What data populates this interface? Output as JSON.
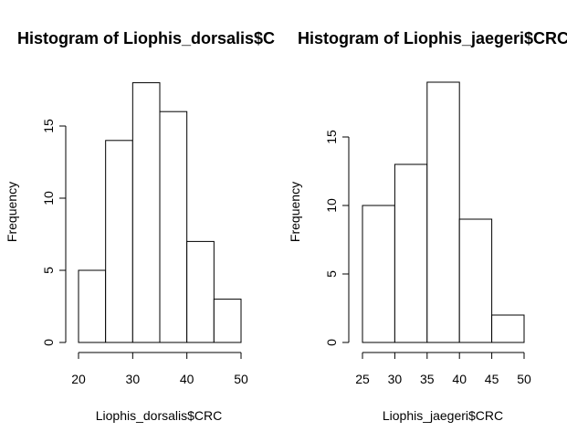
{
  "chart_data": [
    {
      "type": "bar",
      "title": "Histogram of Liophis_dorsalis$C",
      "xlabel": "Liophis_dorsalis$CRC",
      "ylabel": "Frequency",
      "bin_edges": [
        20,
        25,
        30,
        35,
        40,
        45,
        50
      ],
      "values": [
        5,
        14,
        18,
        16,
        7,
        3
      ],
      "xticks": [
        20,
        30,
        40,
        50
      ],
      "xtick_labels": [
        "20",
        "30",
        "40",
        "50"
      ],
      "yticks": [
        0,
        5,
        10,
        15
      ],
      "ytick_labels": [
        "0",
        "5",
        "10",
        "15"
      ],
      "xlim": [
        20,
        50
      ],
      "ylim": [
        0,
        18
      ],
      "grid": false
    },
    {
      "type": "bar",
      "title": "Histogram of Liophis_jaegeri$CRC",
      "xlabel": "Liophis_jaegeri$CRC",
      "ylabel": "Frequency",
      "bin_edges": [
        25,
        30,
        35,
        40,
        45,
        50
      ],
      "values": [
        10,
        13,
        19,
        9,
        2
      ],
      "xticks": [
        25,
        30,
        35,
        40,
        45,
        50
      ],
      "xtick_labels": [
        "25",
        "30",
        "35",
        "40",
        "45",
        "50"
      ],
      "yticks": [
        0,
        5,
        10,
        15
      ],
      "ytick_labels": [
        "0",
        "5",
        "10",
        "15"
      ],
      "xlim": [
        25,
        50
      ],
      "ylim": [
        0,
        19
      ],
      "grid": false
    }
  ]
}
